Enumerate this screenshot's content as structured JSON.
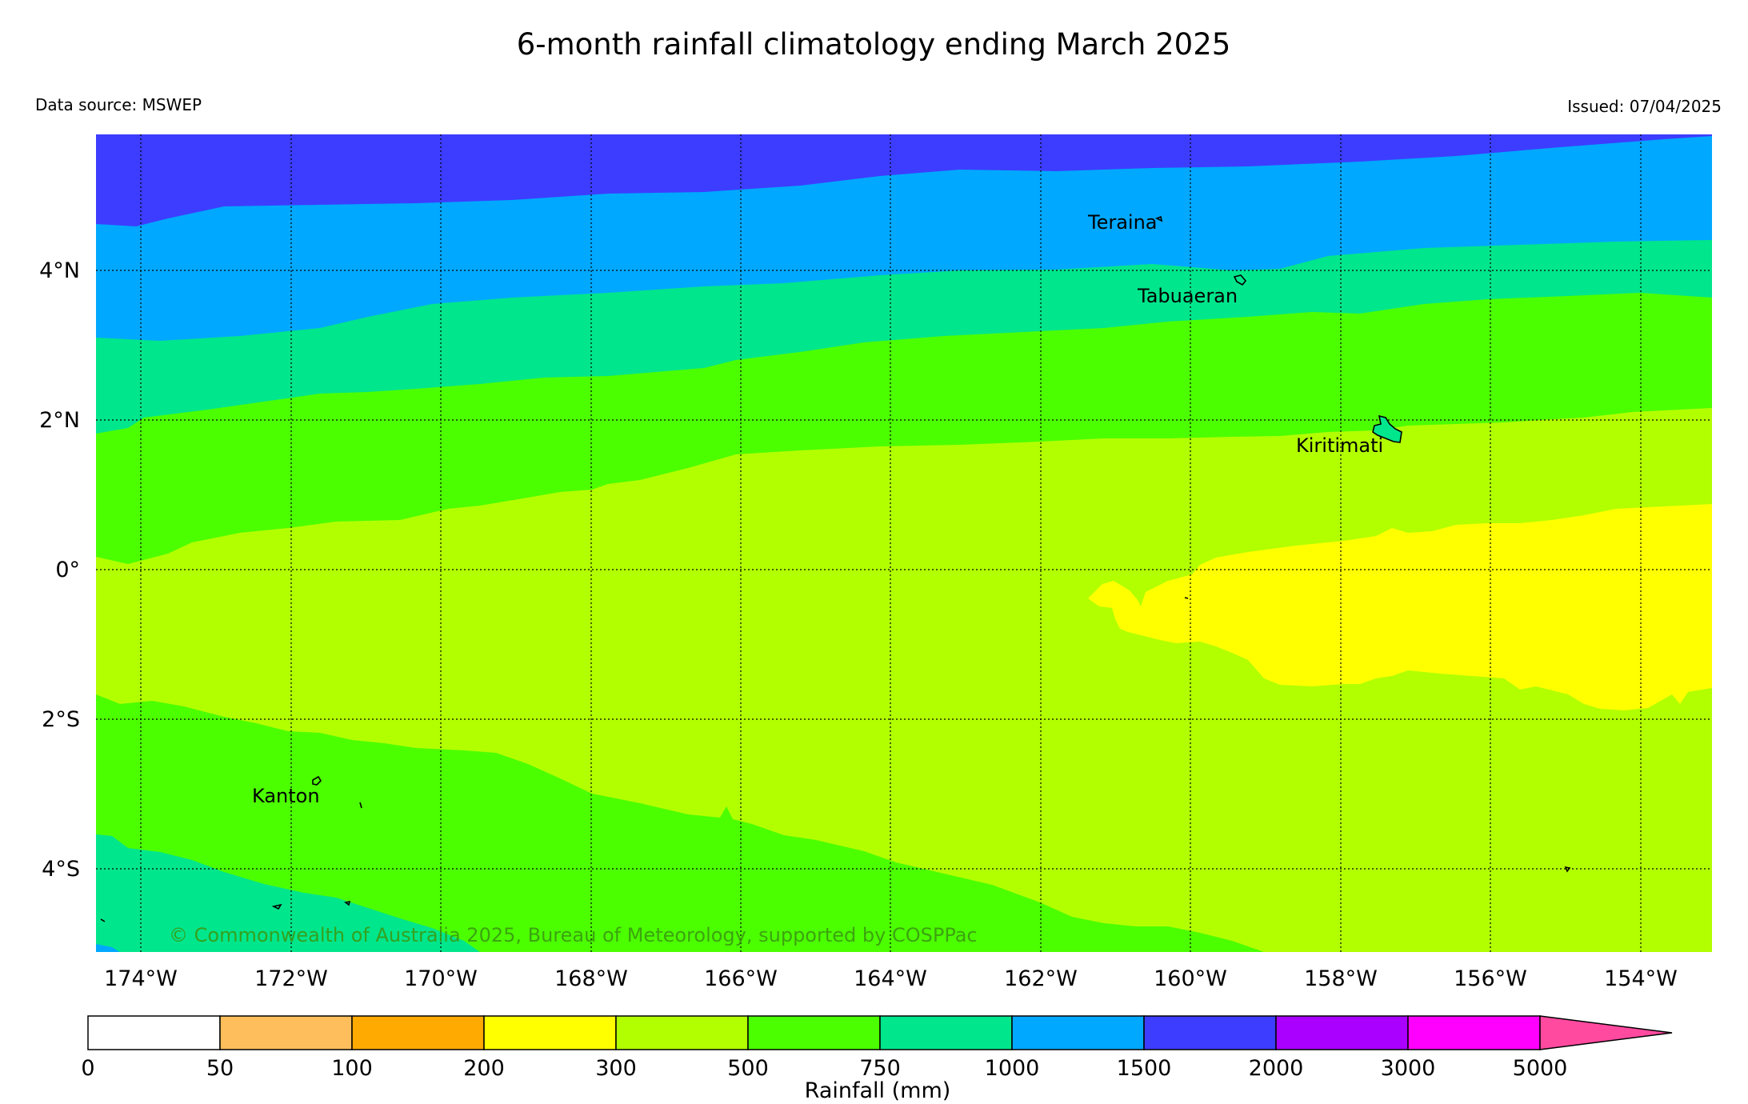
{
  "title": "6-month rainfall climatology ending March 2025",
  "data_source": "Data source: MSWEP",
  "issued": "Issued: 07/04/2025",
  "copyright": "© Commonwealth of Australia 2025, Bureau of Meteorology, supported by COSPPac",
  "lat_labels": [
    "4°N",
    "2°N",
    "0°",
    "2°S",
    "4°S"
  ],
  "lon_labels": [
    "174°W",
    "172°W",
    "170°W",
    "168°W",
    "166°W",
    "164°W",
    "162°W",
    "160°W",
    "158°W",
    "156°W",
    "154°W"
  ],
  "places": [
    "Teraina",
    "Tabuaeran",
    "Kiritimati",
    "Kanton"
  ],
  "colorbar": {
    "label": "Rainfall (mm)",
    "ticks": [
      "0",
      "50",
      "100",
      "200",
      "300",
      "500",
      "750",
      "1000",
      "1500",
      "2000",
      "3000",
      "5000"
    ],
    "colors": [
      "#ffffff",
      "#ffbe5c",
      "#ffaa00",
      "#ffff00",
      "#b2ff00",
      "#4cff00",
      "#00e68c",
      "#00a8ff",
      "#3d3dff",
      "#aa00ff",
      "#ff00ff",
      "#ff4aa0"
    ]
  }
}
